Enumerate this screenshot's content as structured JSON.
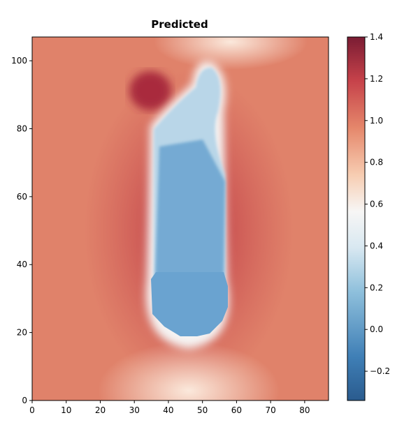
{
  "chart_data": {
    "type": "heatmap",
    "title": "Predicted",
    "xlim": [
      0,
      87
    ],
    "xticks": [
      0,
      10,
      20,
      30,
      40,
      50,
      60,
      70,
      80
    ],
    "ylim": [
      0,
      107
    ],
    "yticks": [
      0,
      20,
      40,
      60,
      80,
      100
    ],
    "colorbar": {
      "cmap": "RdBu_r",
      "lim": [
        -0.34,
        1.4
      ],
      "ticks": [
        {
          "value": -0.2,
          "label": "−0.2"
        },
        {
          "value": 0,
          "label": "0.0"
        },
        {
          "value": 0.2,
          "label": "0.2"
        },
        {
          "value": 0.4,
          "label": "0.4"
        },
        {
          "value": 0.6,
          "label": "0.6"
        },
        {
          "value": 0.8,
          "label": "0.8"
        },
        {
          "value": 1,
          "label": "1.0"
        },
        {
          "value": 1.2,
          "label": "1.2"
        },
        {
          "value": 1.4,
          "label": "1.4"
        }
      ]
    }
  }
}
